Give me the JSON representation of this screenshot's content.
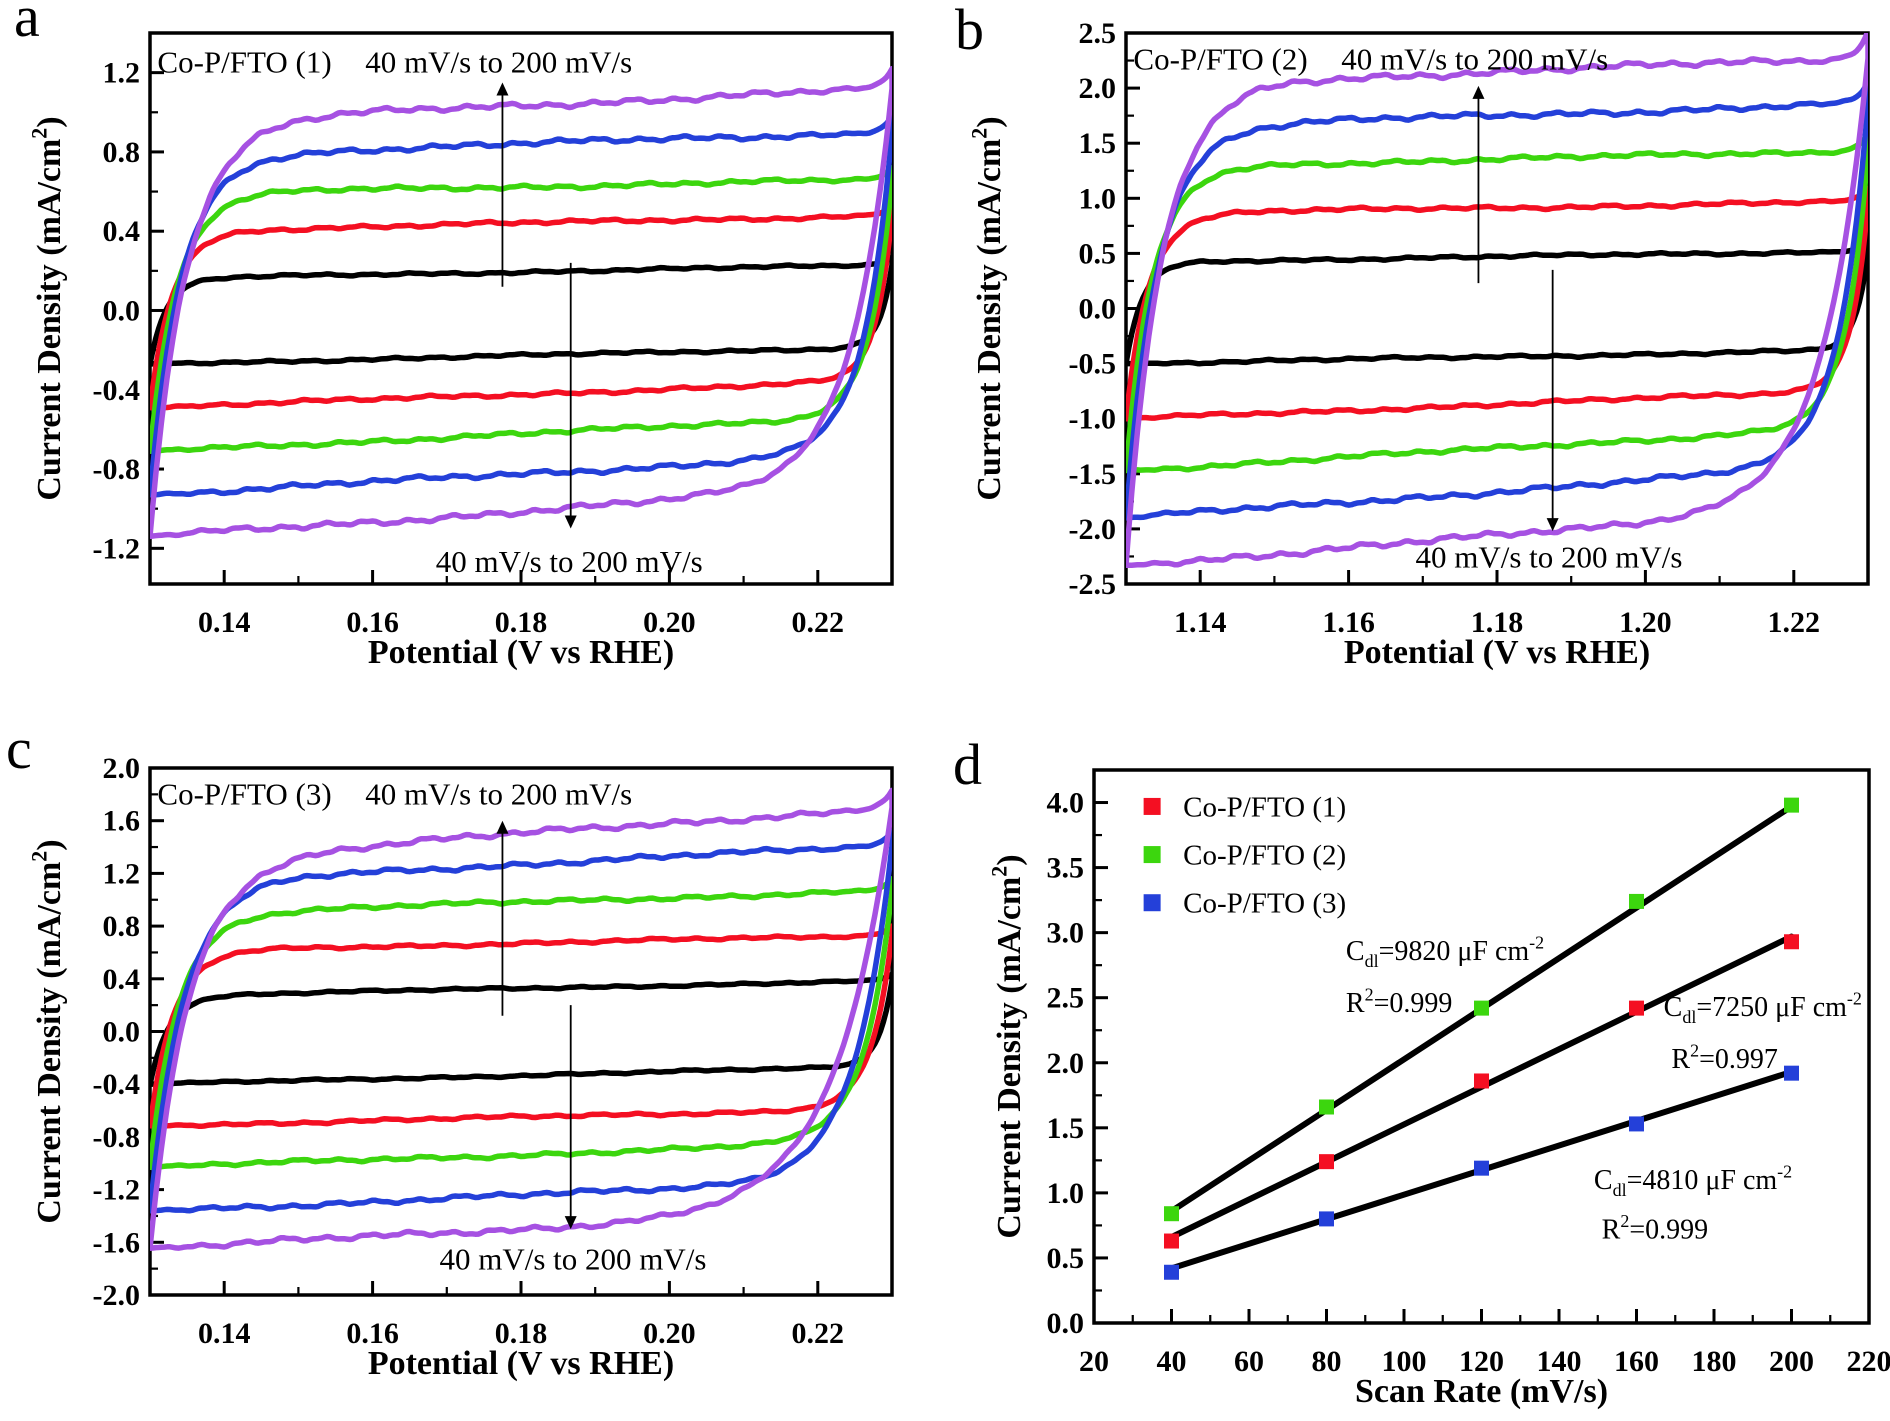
{
  "chart_data": [
    {
      "panel_letter": "a",
      "type": "cv",
      "title": "Co-P/FTO (1)",
      "xlabel": "Potential (V vs RHE)",
      "ylabel_parts": [
        [
          "Current Density (mA/cm"
        ],
        [
          "2",
          "sup"
        ],
        [
          ")"
        ]
      ],
      "annotation_top": "40 mV/s to 200 mV/s",
      "annotation_bottom": "40 mV/s to 200 mV/s",
      "xlim": [
        0.13,
        0.23
      ],
      "ylim": [
        -1.38,
        1.4
      ],
      "xticks": [
        [
          0.14,
          "0.14"
        ],
        [
          0.16,
          "0.16"
        ],
        [
          0.18,
          "0.18"
        ],
        [
          0.2,
          "0.20"
        ],
        [
          0.22,
          "0.22"
        ]
      ],
      "yticks": [
        [
          -1.2,
          "-1.2"
        ],
        [
          -0.8,
          "-0.8"
        ],
        [
          -0.4,
          "-0.4"
        ],
        [
          0,
          "0.0"
        ],
        [
          0.4,
          "0.4"
        ],
        [
          0.8,
          "0.8"
        ],
        [
          1.2,
          "1.2"
        ]
      ],
      "xminor_step": 0.01,
      "yminor_step": 0.2,
      "title_pos": [
        0.131,
        1.25
      ],
      "ann_top_pos": [
        0.177,
        1.25
      ],
      "ann_bottom_pos": [
        0.1865,
        -1.27
      ],
      "arrow_up": [
        0.1775,
        0.12,
        1.15
      ],
      "arrow_down": [
        0.1867,
        0.24,
        -1.1
      ],
      "scan_rates_mV_s": [
        40,
        80,
        120,
        160,
        200
      ],
      "curves": [
        {
          "rate_mV_s": 40,
          "color": "#000000",
          "upper": [
            0.16,
            0.23
          ],
          "lower": [
            -0.27,
            -0.185
          ],
          "tauL": 0.0022,
          "tauR": 0.0016,
          "noise": 0.008,
          "kick": 0.04
        },
        {
          "rate_mV_s": 80,
          "color": "#f40f22",
          "upper": [
            0.4,
            0.48
          ],
          "lower": [
            -0.49,
            -0.355
          ],
          "tauL": 0.003,
          "tauR": 0.0022,
          "noise": 0.011,
          "kick": 0.05
        },
        {
          "rate_mV_s": 120,
          "color": "#3cd60e",
          "upper": [
            0.59,
            0.66
          ],
          "lower": [
            -0.71,
            -0.535
          ],
          "tauL": 0.0036,
          "tauR": 0.003,
          "noise": 0.013,
          "kick": 0.06
        },
        {
          "rate_mV_s": 160,
          "color": "#2440d9",
          "upper": [
            0.78,
            0.9
          ],
          "lower": [
            -0.93,
            -0.72
          ],
          "tauL": 0.0042,
          "tauR": 0.0038,
          "noise": 0.016,
          "kick": 0.08
        },
        {
          "rate_mV_s": 200,
          "color": "#a651e2",
          "upper": [
            0.95,
            1.12
          ],
          "lower": [
            -1.14,
            -0.89
          ],
          "tauL": 0.0048,
          "tauR": 0.0055,
          "noise": 0.018,
          "kick": 0.1
        }
      ],
      "layout": {
        "L": 150,
        "R": 892,
        "T": 33,
        "B": 584,
        "ylabel_x": 60
      }
    },
    {
      "panel_letter": "b",
      "type": "cv",
      "title": "Co-P/FTO (2)",
      "xlabel": "Potential (V vs RHE)",
      "ylabel_parts": [
        [
          "Current Density (mA/cm"
        ],
        [
          "2",
          "sup"
        ],
        [
          ")"
        ]
      ],
      "annotation_top": "40 mV/s to 200 mV/s",
      "annotation_bottom": "40 mV/s to 200 mV/s",
      "xlim": [
        1.13,
        1.23
      ],
      "ylim": [
        -2.5,
        2.5
      ],
      "xticks": [
        [
          1.14,
          "1.14"
        ],
        [
          1.16,
          "1.16"
        ],
        [
          1.18,
          "1.18"
        ],
        [
          1.2,
          "1.20"
        ],
        [
          1.22,
          "1.22"
        ]
      ],
      "yticks": [
        [
          -2.5,
          "-2.5"
        ],
        [
          -2.0,
          "-2.0"
        ],
        [
          -1.5,
          "-1.5"
        ],
        [
          -1.0,
          "-1.0"
        ],
        [
          -0.5,
          "-0.5"
        ],
        [
          0,
          "0.0"
        ],
        [
          0.5,
          "0.5"
        ],
        [
          1.0,
          "1.0"
        ],
        [
          1.5,
          "1.5"
        ],
        [
          2.0,
          "2.0"
        ],
        [
          2.5,
          "2.5"
        ]
      ],
      "xminor_step": 0.01,
      "yminor_step": 0.25,
      "title_pos": [
        1.131,
        2.26
      ],
      "ann_top_pos": [
        1.177,
        2.26
      ],
      "ann_bottom_pos": [
        1.187,
        -2.26
      ],
      "arrow_up": [
        1.1775,
        0.23,
        2.02
      ],
      "arrow_down": [
        1.1875,
        0.35,
        -2.02
      ],
      "scan_rates_mV_s": [
        40,
        80,
        120,
        160,
        200
      ],
      "curves": [
        {
          "rate_mV_s": 40,
          "color": "#000000",
          "upper": [
            0.42,
            0.52
          ],
          "lower": [
            -0.5,
            -0.375
          ],
          "tauL": 0.0022,
          "tauR": 0.0016,
          "noise": 0.015,
          "kick": 0.08
        },
        {
          "rate_mV_s": 80,
          "color": "#f40f22",
          "upper": [
            0.86,
            0.97
          ],
          "lower": [
            -1.0,
            -0.74
          ],
          "tauL": 0.003,
          "tauR": 0.0022,
          "noise": 0.02,
          "kick": 0.12
        },
        {
          "rate_mV_s": 120,
          "color": "#3cd60e",
          "upper": [
            1.28,
            1.43
          ],
          "lower": [
            -1.47,
            -1.07
          ],
          "tauL": 0.0036,
          "tauR": 0.003,
          "noise": 0.024,
          "kick": 0.16
        },
        {
          "rate_mV_s": 160,
          "color": "#2440d9",
          "upper": [
            1.64,
            1.86
          ],
          "lower": [
            -1.9,
            -1.42
          ],
          "tauL": 0.0042,
          "tauR": 0.004,
          "noise": 0.03,
          "kick": 0.2
        },
        {
          "rate_mV_s": 200,
          "color": "#a651e2",
          "upper": [
            2.03,
            2.27
          ],
          "lower": [
            -2.33,
            -1.8
          ],
          "tauL": 0.0048,
          "tauR": 0.006,
          "noise": 0.034,
          "kick": 0.25
        }
      ],
      "layout": {
        "L": 181,
        "R": 923,
        "T": 33,
        "B": 584,
        "ylabel_x": 55
      }
    },
    {
      "panel_letter": "c",
      "type": "cv",
      "title": "Co-P/FTO (3)",
      "xlabel": "Potential (V vs RHE)",
      "ylabel_parts": [
        [
          "Current Density (mA/cm"
        ],
        [
          "2",
          "sup"
        ],
        [
          ")"
        ]
      ],
      "annotation_top": "40 mV/s to 200 mV/s",
      "annotation_bottom": "40 mV/s to 200 mV/s",
      "xlim": [
        0.13,
        0.23
      ],
      "ylim": [
        -2.0,
        2.0
      ],
      "xticks": [
        [
          0.14,
          "0.14"
        ],
        [
          0.16,
          "0.16"
        ],
        [
          0.18,
          "0.18"
        ],
        [
          0.2,
          "0.20"
        ],
        [
          0.22,
          "0.22"
        ]
      ],
      "yticks": [
        [
          -2.0,
          "-2.0"
        ],
        [
          -1.6,
          "-1.6"
        ],
        [
          -1.2,
          "-1.2"
        ],
        [
          -0.8,
          "-0.8"
        ],
        [
          -0.4,
          "-0.4"
        ],
        [
          0,
          "0.0"
        ],
        [
          0.4,
          "0.4"
        ],
        [
          0.8,
          "0.8"
        ],
        [
          1.2,
          "1.2"
        ],
        [
          1.6,
          "1.6"
        ],
        [
          2.0,
          "2.0"
        ]
      ],
      "xminor_step": 0.01,
      "yminor_step": 0.2,
      "title_pos": [
        0.131,
        1.8
      ],
      "ann_top_pos": [
        0.177,
        1.8
      ],
      "ann_bottom_pos": [
        0.187,
        -1.73
      ],
      "arrow_up": [
        0.1775,
        0.12,
        1.6
      ],
      "arrow_down": [
        0.1867,
        0.2,
        -1.5
      ],
      "scan_rates_mV_s": [
        40,
        80,
        120,
        160,
        200
      ],
      "curves": [
        {
          "rate_mV_s": 40,
          "color": "#000000",
          "upper": [
            0.27,
            0.385
          ],
          "lower": [
            -0.4,
            -0.265
          ],
          "tauL": 0.0025,
          "tauR": 0.0018,
          "noise": 0.01,
          "kick": 0.05
        },
        {
          "rate_mV_s": 80,
          "color": "#f40f22",
          "upper": [
            0.61,
            0.73
          ],
          "lower": [
            -0.715,
            -0.585
          ],
          "tauL": 0.0032,
          "tauR": 0.0028,
          "noise": 0.014,
          "kick": 0.07
        },
        {
          "rate_mV_s": 120,
          "color": "#3cd60e",
          "upper": [
            0.89,
            1.07
          ],
          "lower": [
            -1.03,
            -0.84
          ],
          "tauL": 0.0038,
          "tauR": 0.0038,
          "noise": 0.018,
          "kick": 0.09
        },
        {
          "rate_mV_s": 160,
          "color": "#2440d9",
          "upper": [
            1.13,
            1.41
          ],
          "lower": [
            -1.36,
            -1.13
          ],
          "tauL": 0.0045,
          "tauR": 0.005,
          "noise": 0.022,
          "kick": 0.11
        },
        {
          "rate_mV_s": 200,
          "color": "#a651e2",
          "upper": [
            1.3,
            1.7
          ],
          "lower": [
            -1.645,
            -1.36
          ],
          "tauL": 0.0052,
          "tauR": 0.0075,
          "noise": 0.026,
          "kick": 0.13
        }
      ],
      "layout": {
        "L": 150,
        "R": 892,
        "T": 58,
        "B": 585,
        "ylabel_x": 60
      }
    },
    {
      "panel_letter": "d",
      "type": "scatter",
      "xlabel": "Scan Rate (mV/s)",
      "ylabel_parts": [
        [
          "Current Density (mA/cm"
        ],
        [
          "2",
          "sup"
        ],
        [
          ")"
        ]
      ],
      "xlim": [
        20,
        220
      ],
      "ylim": [
        0,
        4.25
      ],
      "xticks": [
        [
          20,
          "20"
        ],
        [
          40,
          "40"
        ],
        [
          60,
          "60"
        ],
        [
          80,
          "80"
        ],
        [
          100,
          "100"
        ],
        [
          120,
          "120"
        ],
        [
          140,
          "140"
        ],
        [
          160,
          "160"
        ],
        [
          180,
          "180"
        ],
        [
          200,
          "200"
        ],
        [
          220,
          "220"
        ]
      ],
      "yticks": [
        [
          0,
          "0.0"
        ],
        [
          0.5,
          "0.5"
        ],
        [
          1.0,
          "1.0"
        ],
        [
          1.5,
          "1.5"
        ],
        [
          2.0,
          "2.0"
        ],
        [
          2.5,
          "2.5"
        ],
        [
          3.0,
          "3.0"
        ],
        [
          3.5,
          "3.5"
        ],
        [
          4.0,
          "4.0"
        ]
      ],
      "xminor_step": 10,
      "yminor_step": 0.25,
      "legend": [
        {
          "label": "Co-P/FTO (1)",
          "color": "#f40f22"
        },
        {
          "label": "Co-P/FTO (2)",
          "color": "#3cd60e"
        },
        {
          "label": "Co-P/FTO (3)",
          "color": "#2440d9"
        }
      ],
      "legend_rows_y": [
        3.97,
        3.6,
        3.23
      ],
      "legend_square_x": 35,
      "legend_label_x": 43,
      "series": [
        {
          "name": "Co-P/FTO (1)",
          "color": "#f40f22",
          "x": [
            40,
            80,
            120,
            160,
            200
          ],
          "y": [
            0.63,
            1.24,
            1.86,
            2.42,
            2.93
          ],
          "fit": [
            [
              40,
              0.66
            ],
            [
              200,
              2.97
            ]
          ],
          "cdl_uF_cm2": 7250,
          "r_squared": 0.997
        },
        {
          "name": "Co-P/FTO (2)",
          "color": "#3cd60e",
          "x": [
            40,
            80,
            120,
            160,
            200
          ],
          "y": [
            0.84,
            1.66,
            2.42,
            3.24,
            3.98
          ],
          "fit": [
            [
              40,
              0.86
            ],
            [
              200,
              3.97
            ]
          ],
          "cdl_uF_cm2": 9820,
          "r_squared": 0.999
        },
        {
          "name": "Co-P/FTO (3)",
          "color": "#2440d9",
          "x": [
            40,
            80,
            120,
            160,
            200
          ],
          "y": [
            0.39,
            0.8,
            1.19,
            1.53,
            1.92
          ],
          "fit": [
            [
              40,
              0.42
            ],
            [
              200,
              1.93
            ]
          ],
          "cdl_uF_cm2": 4810,
          "r_squared": 0.999
        }
      ],
      "annotations": [
        {
          "x": 85,
          "y": 2.86,
          "parts": [
            [
              "C"
            ],
            [
              "dl",
              "sub"
            ],
            [
              "=9820 μF cm"
            ],
            [
              "-2",
              "sup"
            ]
          ]
        },
        {
          "x": 85,
          "y": 2.46,
          "parts": [
            [
              "R"
            ],
            [
              "2",
              "sup"
            ],
            [
              "=0.999"
            ]
          ]
        },
        {
          "x": 167,
          "y": 2.43,
          "parts": [
            [
              "C"
            ],
            [
              "dl",
              "sub"
            ],
            [
              "=7250 μF cm"
            ],
            [
              "-2",
              "sup"
            ]
          ]
        },
        {
          "x": 169,
          "y": 2.03,
          "parts": [
            [
              "R"
            ],
            [
              "2",
              "sup"
            ],
            [
              "=0.997"
            ]
          ]
        },
        {
          "x": 149,
          "y": 1.1,
          "parts": [
            [
              "C"
            ],
            [
              "dl",
              "sub"
            ],
            [
              "=4810 μF cm"
            ],
            [
              "-2",
              "sup"
            ]
          ]
        },
        {
          "x": 151,
          "y": 0.72,
          "parts": [
            [
              "R"
            ],
            [
              "2",
              "sup"
            ],
            [
              "=0.999"
            ]
          ]
        }
      ],
      "layout": {
        "L": 149,
        "R": 924,
        "T": 60,
        "B": 613,
        "ylabel_x": 75
      }
    }
  ],
  "styles": {
    "axis_color": "#000000",
    "fit_line_color": "#000000",
    "series_colors": {
      "black": "#000000",
      "red": "#f40f22",
      "green": "#3cd60e",
      "blue": "#2440d9",
      "purple": "#a651e2"
    }
  }
}
